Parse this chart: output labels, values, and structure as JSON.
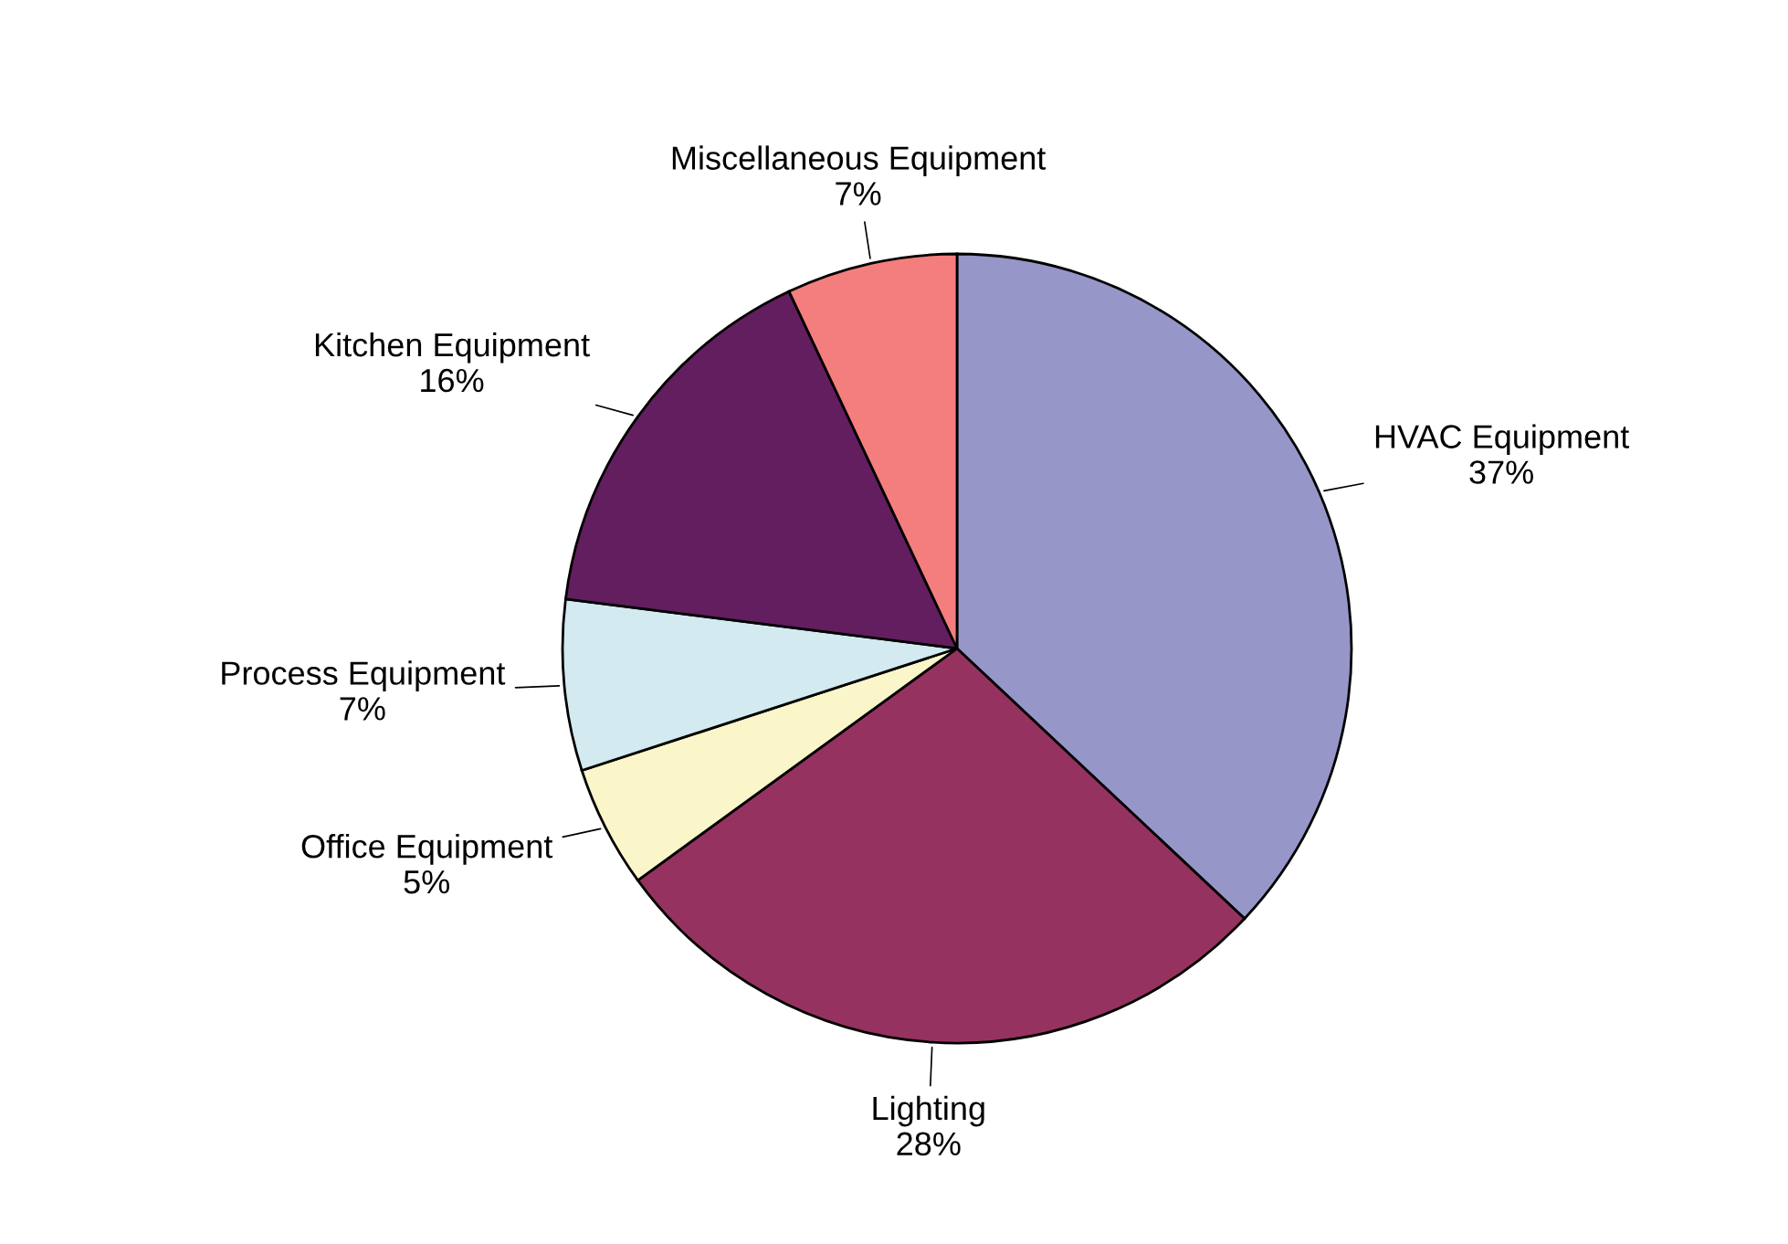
{
  "chart_data": {
    "type": "pie",
    "categories": [
      "HVAC Equipment",
      "Lighting",
      "Office Equipment",
      "Process Equipment",
      "Kitchen Equipment",
      "Miscellaneous Equipment"
    ],
    "values": [
      37,
      28,
      5,
      7,
      16,
      7
    ],
    "value_labels": [
      "37%",
      "28%",
      "5%",
      "7%",
      "16%",
      "7%"
    ],
    "colors": [
      "#9696c8",
      "#963260",
      "#faf6ca",
      "#d2eaf0",
      "#621e5e",
      "#f47e7e"
    ],
    "legend": false
  }
}
